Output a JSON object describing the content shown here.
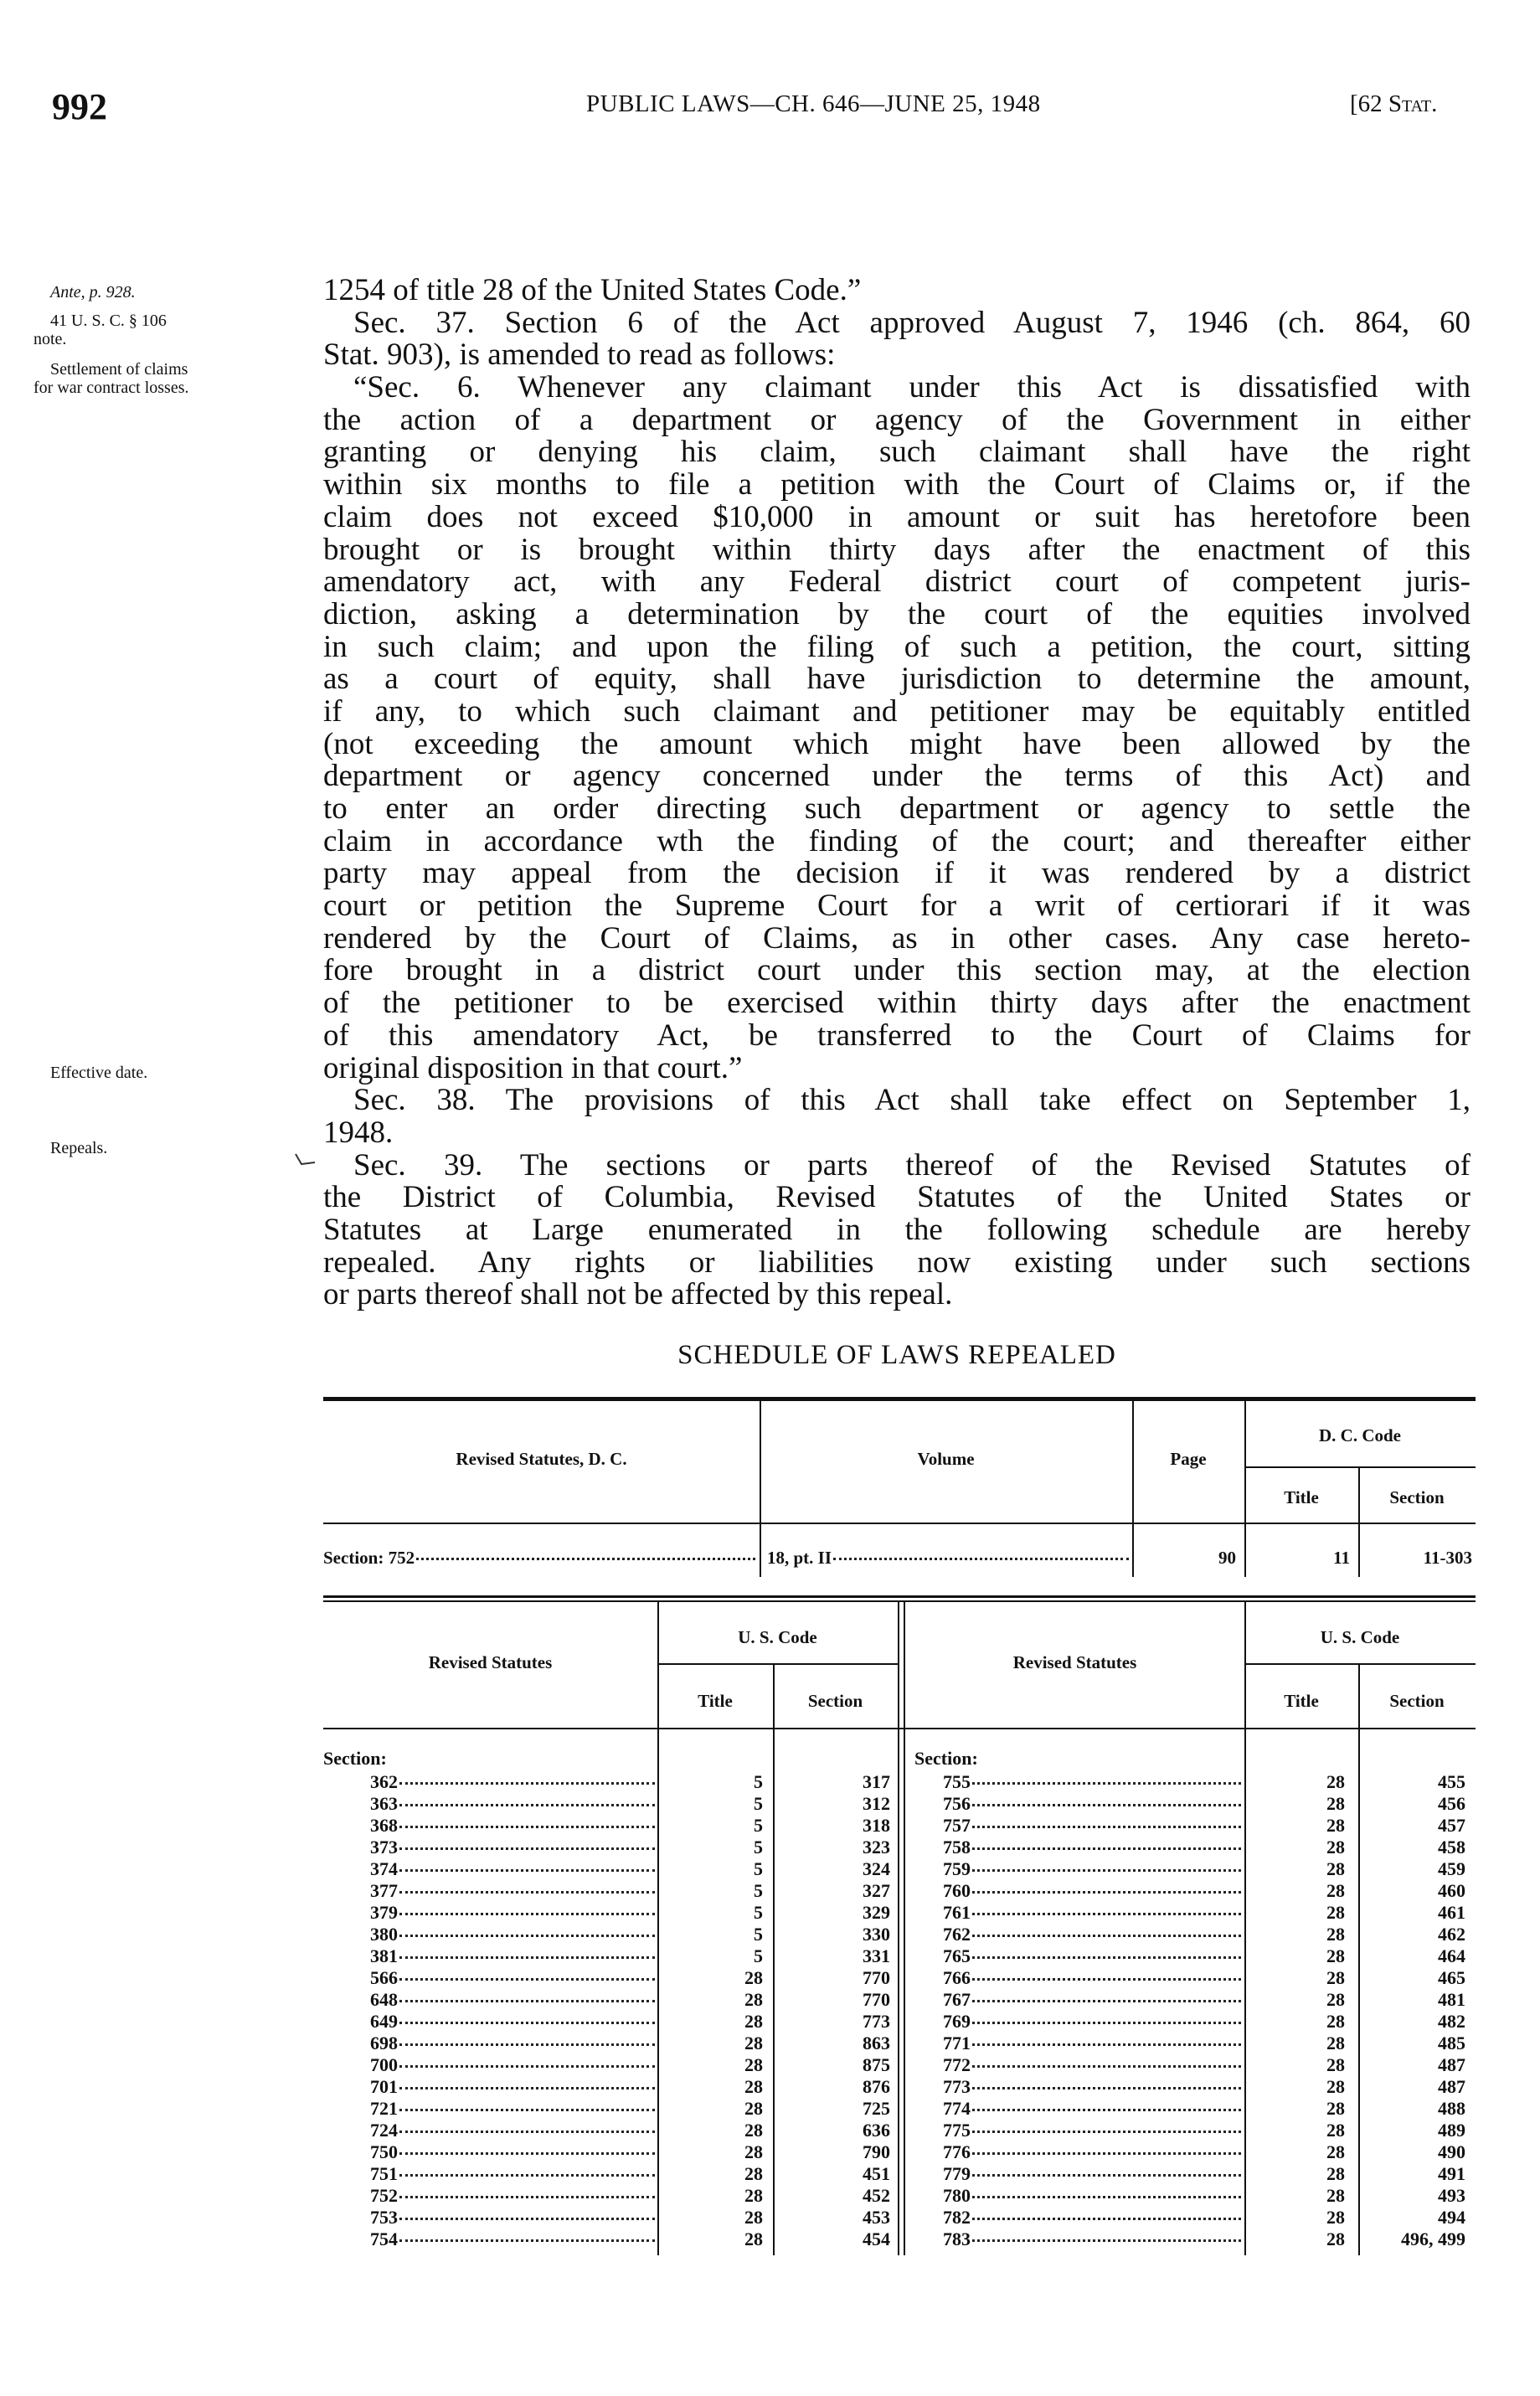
{
  "header": {
    "page_number": "992",
    "running_head": "PUBLIC LAWS—CH. 646—JUNE 25, 1948",
    "stat_ref_bracket": "[62 ",
    "stat_ref_word": "Stat."
  },
  "margin_notes": {
    "ante": "Ante, p. 928.",
    "usc": "41 U. S. C. § 106",
    "usc_note": "note.",
    "settlement_1": "Settlement of claims",
    "settlement_2": "for war contract losses.",
    "effective_date": "Effective date.",
    "repeals": "Repeals."
  },
  "body": {
    "lines": [
      "1254 of title 28 of the United States Code.”",
      "Sec. 37. Section 6 of the Act approved August 7, 1946 (ch. 864, 60",
      "Stat. 903), is amended to read as follows:",
      "“Sec. 6. Whenever any claimant under this Act is dissatisfied with",
      "the action of a department or agency of the Government in either",
      "granting or denying his claim, such claimant shall have the right",
      "within six months to file a petition with the Court of Claims or, if the",
      "claim does not exceed $10,000 in amount or suit has heretofore been",
      "brought or is brought within thirty days after the enactment of this",
      "amendatory act, with any Federal district court of competent juris-",
      "diction, asking a determination by the court of the equities involved",
      "in such claim; and upon the filing of such a petition, the court, sitting",
      "as a court of equity, shall have jurisdiction to determine the amount,",
      "if any, to which such claimant and petitioner may be equitably entitled",
      "(not exceeding the amount which might have been allowed by the",
      "department or agency concerned under the terms of this Act) and",
      "to enter an order directing such department or agency to settle the",
      "claim in accordance wth the finding of the court; and thereafter either",
      "party may appeal from the decision if it was rendered by a district",
      "court or petition the Supreme Court for a writ of certiorari if it was",
      "rendered by the Court of Claims, as in other cases. Any case hereto-",
      "fore brought in a district court under this section may, at the election",
      "of the petitioner to be exercised within thirty days after the enactment",
      "of this amendatory Act, be transferred to the Court of Claims for",
      "original disposition in that court.”",
      "Sec. 38. The provisions of this Act shall take effect on September 1,",
      "1948.",
      "Sec. 39. The sections or parts thereof of the Revised Statutes of",
      "the District of Columbia, Revised Statutes of the United States or",
      "Statutes at Large enumerated in the following schedule are hereby",
      "repealed. Any rights or liabilities now existing under such sections",
      "or parts thereof shall not be affected by this repeal."
    ]
  },
  "schedule": {
    "title": "SCHEDULE OF LAWS REPEALED",
    "table1": {
      "headers": {
        "rs_dc": "Revised Statutes, D. C.",
        "volume": "Volume",
        "page": "Page",
        "dc_code": "D. C. Code",
        "title": "Title",
        "section": "Section"
      },
      "row": {
        "rs_section": "Section: 752",
        "volume": "18, pt. II",
        "page": "90",
        "title": "11",
        "section": "11-303"
      }
    },
    "table2": {
      "headers": {
        "revised_statutes": "Revised Statutes",
        "us_code": "U. S. Code",
        "title": "Title",
        "section": "Section"
      },
      "section_label": "Section:",
      "left_rows": [
        [
          "362",
          "5",
          "317"
        ],
        [
          "363",
          "5",
          "312"
        ],
        [
          "368",
          "5",
          "318"
        ],
        [
          "373",
          "5",
          "323"
        ],
        [
          "374",
          "5",
          "324"
        ],
        [
          "377",
          "5",
          "327"
        ],
        [
          "379",
          "5",
          "329"
        ],
        [
          "380",
          "5",
          "330"
        ],
        [
          "381",
          "5",
          "331"
        ],
        [
          "566",
          "28",
          "770"
        ],
        [
          "648",
          "28",
          "770"
        ],
        [
          "649",
          "28",
          "773"
        ],
        [
          "698",
          "28",
          "863"
        ],
        [
          "700",
          "28",
          "875"
        ],
        [
          "701",
          "28",
          "876"
        ],
        [
          "721",
          "28",
          "725"
        ],
        [
          "724",
          "28",
          "636"
        ],
        [
          "750",
          "28",
          "790"
        ],
        [
          "751",
          "28",
          "451"
        ],
        [
          "752",
          "28",
          "452"
        ],
        [
          "753",
          "28",
          "453"
        ],
        [
          "754",
          "28",
          "454"
        ]
      ],
      "right_rows": [
        [
          "755",
          "28",
          "455"
        ],
        [
          "756",
          "28",
          "456"
        ],
        [
          "757",
          "28",
          "457"
        ],
        [
          "758",
          "28",
          "458"
        ],
        [
          "759",
          "28",
          "459"
        ],
        [
          "760",
          "28",
          "460"
        ],
        [
          "761",
          "28",
          "461"
        ],
        [
          "762",
          "28",
          "462"
        ],
        [
          "765",
          "28",
          "464"
        ],
        [
          "766",
          "28",
          "465"
        ],
        [
          "767",
          "28",
          "481"
        ],
        [
          "769",
          "28",
          "482"
        ],
        [
          "771",
          "28",
          "485"
        ],
        [
          "772",
          "28",
          "487"
        ],
        [
          "773",
          "28",
          "487"
        ],
        [
          "774",
          "28",
          "488"
        ],
        [
          "775",
          "28",
          "489"
        ],
        [
          "776",
          "28",
          "490"
        ],
        [
          "779",
          "28",
          "491"
        ],
        [
          "780",
          "28",
          "493"
        ],
        [
          "782",
          "28",
          "494"
        ],
        [
          "783",
          "28",
          "496, 499"
        ]
      ]
    }
  }
}
